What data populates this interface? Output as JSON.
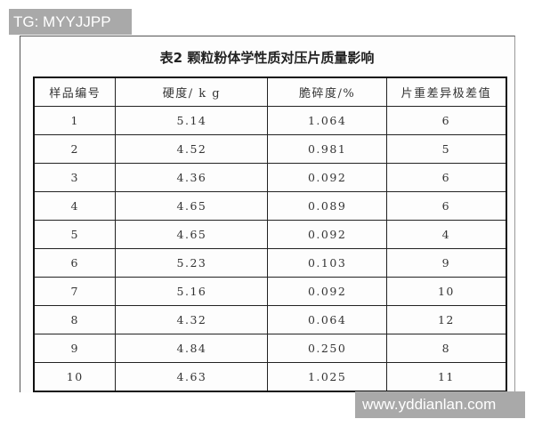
{
  "watermarks": {
    "top_left": "TG: MYYJJPP",
    "bottom_right": "www.yddianlan.com"
  },
  "table": {
    "title": "表2 颗粒粉体学性质对压片质量影响",
    "headers": [
      "样品编号",
      "硬度/ k g",
      "脆碎度/%",
      "片重差异极差值"
    ],
    "rows": [
      [
        "1",
        "5.14",
        "1.064",
        "6"
      ],
      [
        "2",
        "4.52",
        "0.981",
        "5"
      ],
      [
        "3",
        "4.36",
        "0.092",
        "6"
      ],
      [
        "4",
        "4.65",
        "0.089",
        "6"
      ],
      [
        "5",
        "4.65",
        "0.092",
        "4"
      ],
      [
        "6",
        "5.23",
        "0.103",
        "9"
      ],
      [
        "7",
        "5.16",
        "0.092",
        "10"
      ],
      [
        "8",
        "4.32",
        "0.064",
        "12"
      ],
      [
        "9",
        "4.84",
        "0.250",
        "8"
      ],
      [
        "10",
        "4.63",
        "1.025",
        "11"
      ]
    ]
  }
}
